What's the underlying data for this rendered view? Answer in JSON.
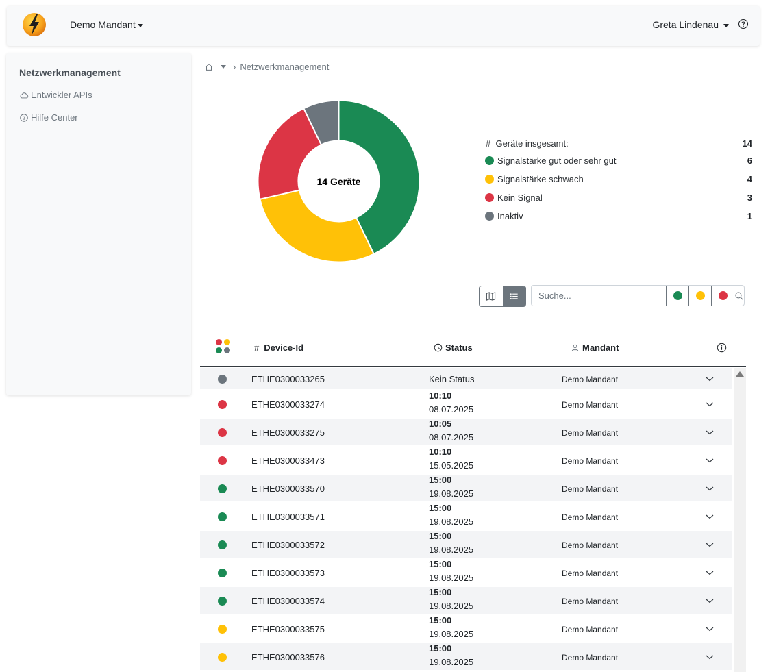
{
  "colors": {
    "good": "#1a8a54",
    "weak": "#ffc107",
    "none": "#dc3545",
    "inactive": "#6c757d"
  },
  "header": {
    "logo_icon": "lightning-logo-icon",
    "tenant": "Demo Mandant",
    "user": "Greta Lindenau",
    "help_icon": "question-circle-icon"
  },
  "sidebar": {
    "title": "Netzwerkmanagement",
    "items": [
      {
        "label": "Entwickler APIs",
        "icon": "cloud-icon"
      },
      {
        "label": "Hilfe Center",
        "icon": "question-circle-icon"
      }
    ]
  },
  "breadcrumb": {
    "home_icon": "home-icon",
    "current": "Netzwerkmanagement"
  },
  "chart_data": {
    "type": "pie",
    "center_label": "14 Geräte",
    "slices": [
      {
        "label": "Signalstärke gut oder sehr gut",
        "value": 6,
        "color": "#1a8a54"
      },
      {
        "label": "Signalstärke schwach",
        "value": 4,
        "color": "#ffc107"
      },
      {
        "label": "Kein Signal",
        "value": 3,
        "color": "#dc3545"
      },
      {
        "label": "Inaktiv",
        "value": 1,
        "color": "#6c757d"
      }
    ]
  },
  "summary": {
    "total_label": "Geräte insgesamt:",
    "total_prefix": "#",
    "total": "14",
    "rows": [
      {
        "label": "Signalstärke gut oder sehr gut",
        "count": "6"
      },
      {
        "label": "Signalstärke schwach",
        "count": "4"
      },
      {
        "label": "Kein Signal",
        "count": "3"
      },
      {
        "label": "Inaktiv",
        "count": "1"
      }
    ]
  },
  "toolbar": {
    "search_placeholder": "Suche...",
    "map_view_icon": "map-icon",
    "list_view_icon": "list-icon",
    "search_icon": "search-icon"
  },
  "table": {
    "headers": {
      "device_prefix": "#",
      "device": "Device-Id",
      "status": "Status",
      "mandant": "Mandant",
      "info_icon": "info-circle-icon"
    },
    "rows": [
      {
        "status": "inactive",
        "device": "ETHE0300033265",
        "time": "",
        "date": "",
        "status_text": "Kein Status",
        "mandant": "Demo Mandant"
      },
      {
        "status": "none",
        "device": "ETHE0300033274",
        "time": "10:10",
        "date": "08.07.2025",
        "status_text": "",
        "mandant": "Demo Mandant"
      },
      {
        "status": "none",
        "device": "ETHE0300033275",
        "time": "10:05",
        "date": "08.07.2025",
        "status_text": "",
        "mandant": "Demo Mandant"
      },
      {
        "status": "none",
        "device": "ETHE0300033473",
        "time": "10:10",
        "date": "15.05.2025",
        "status_text": "",
        "mandant": "Demo Mandant"
      },
      {
        "status": "good",
        "device": "ETHE0300033570",
        "time": "15:00",
        "date": "19.08.2025",
        "status_text": "",
        "mandant": "Demo Mandant"
      },
      {
        "status": "good",
        "device": "ETHE0300033571",
        "time": "15:00",
        "date": "19.08.2025",
        "status_text": "",
        "mandant": "Demo Mandant"
      },
      {
        "status": "good",
        "device": "ETHE0300033572",
        "time": "15:00",
        "date": "19.08.2025",
        "status_text": "",
        "mandant": "Demo Mandant"
      },
      {
        "status": "good",
        "device": "ETHE0300033573",
        "time": "15:00",
        "date": "19.08.2025",
        "status_text": "",
        "mandant": "Demo Mandant"
      },
      {
        "status": "good",
        "device": "ETHE0300033574",
        "time": "15:00",
        "date": "19.08.2025",
        "status_text": "",
        "mandant": "Demo Mandant"
      },
      {
        "status": "weak",
        "device": "ETHE0300033575",
        "time": "15:00",
        "date": "19.08.2025",
        "status_text": "",
        "mandant": "Demo Mandant"
      },
      {
        "status": "weak",
        "device": "ETHE0300033576",
        "time": "15:00",
        "date": "19.08.2025",
        "status_text": "",
        "mandant": "Demo Mandant"
      }
    ]
  }
}
